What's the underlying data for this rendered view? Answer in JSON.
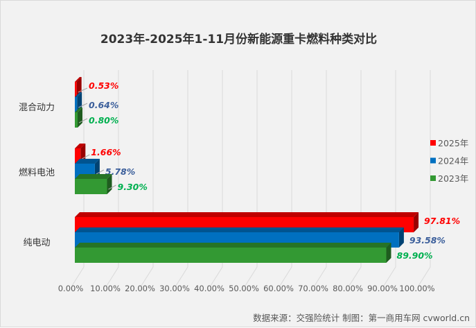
{
  "chart_data": {
    "type": "bar",
    "orientation": "horizontal",
    "style": "3d-clustered",
    "title": "2023年-2025年1-11月份新能源重卡燃料种类对比",
    "categories": [
      "混合动力",
      "燃料电池",
      "纯电动"
    ],
    "series": [
      {
        "name": "2025年",
        "color": "#ff0000",
        "label_color": "#ff0000",
        "values": [
          0.53,
          1.66,
          97.81
        ],
        "labels": [
          "0.53%",
          "1.66%",
          "97.81%"
        ]
      },
      {
        "name": "2024年",
        "color": "#0070c0",
        "label_color": "#3c5f9b",
        "values": [
          0.64,
          5.78,
          93.58
        ],
        "labels": [
          "0.64%",
          "5.78%",
          "93.58%"
        ]
      },
      {
        "name": "2023年",
        "color": "#339933",
        "label_color": "#00b050",
        "values": [
          0.8,
          9.3,
          89.9
        ],
        "labels": [
          "0.80%",
          "9.30%",
          "89.90%"
        ]
      }
    ],
    "xlim": [
      0,
      100
    ],
    "xticks": [
      "0.00%",
      "10.00%",
      "20.00%",
      "30.00%",
      "40.00%",
      "50.00%",
      "60.00%",
      "70.00%",
      "80.00%",
      "90.00%",
      "100.00%"
    ],
    "grid": true,
    "legend": "right"
  },
  "source": "数据来源：交强险统计  制图：第一商用车网 cvworld.cn"
}
